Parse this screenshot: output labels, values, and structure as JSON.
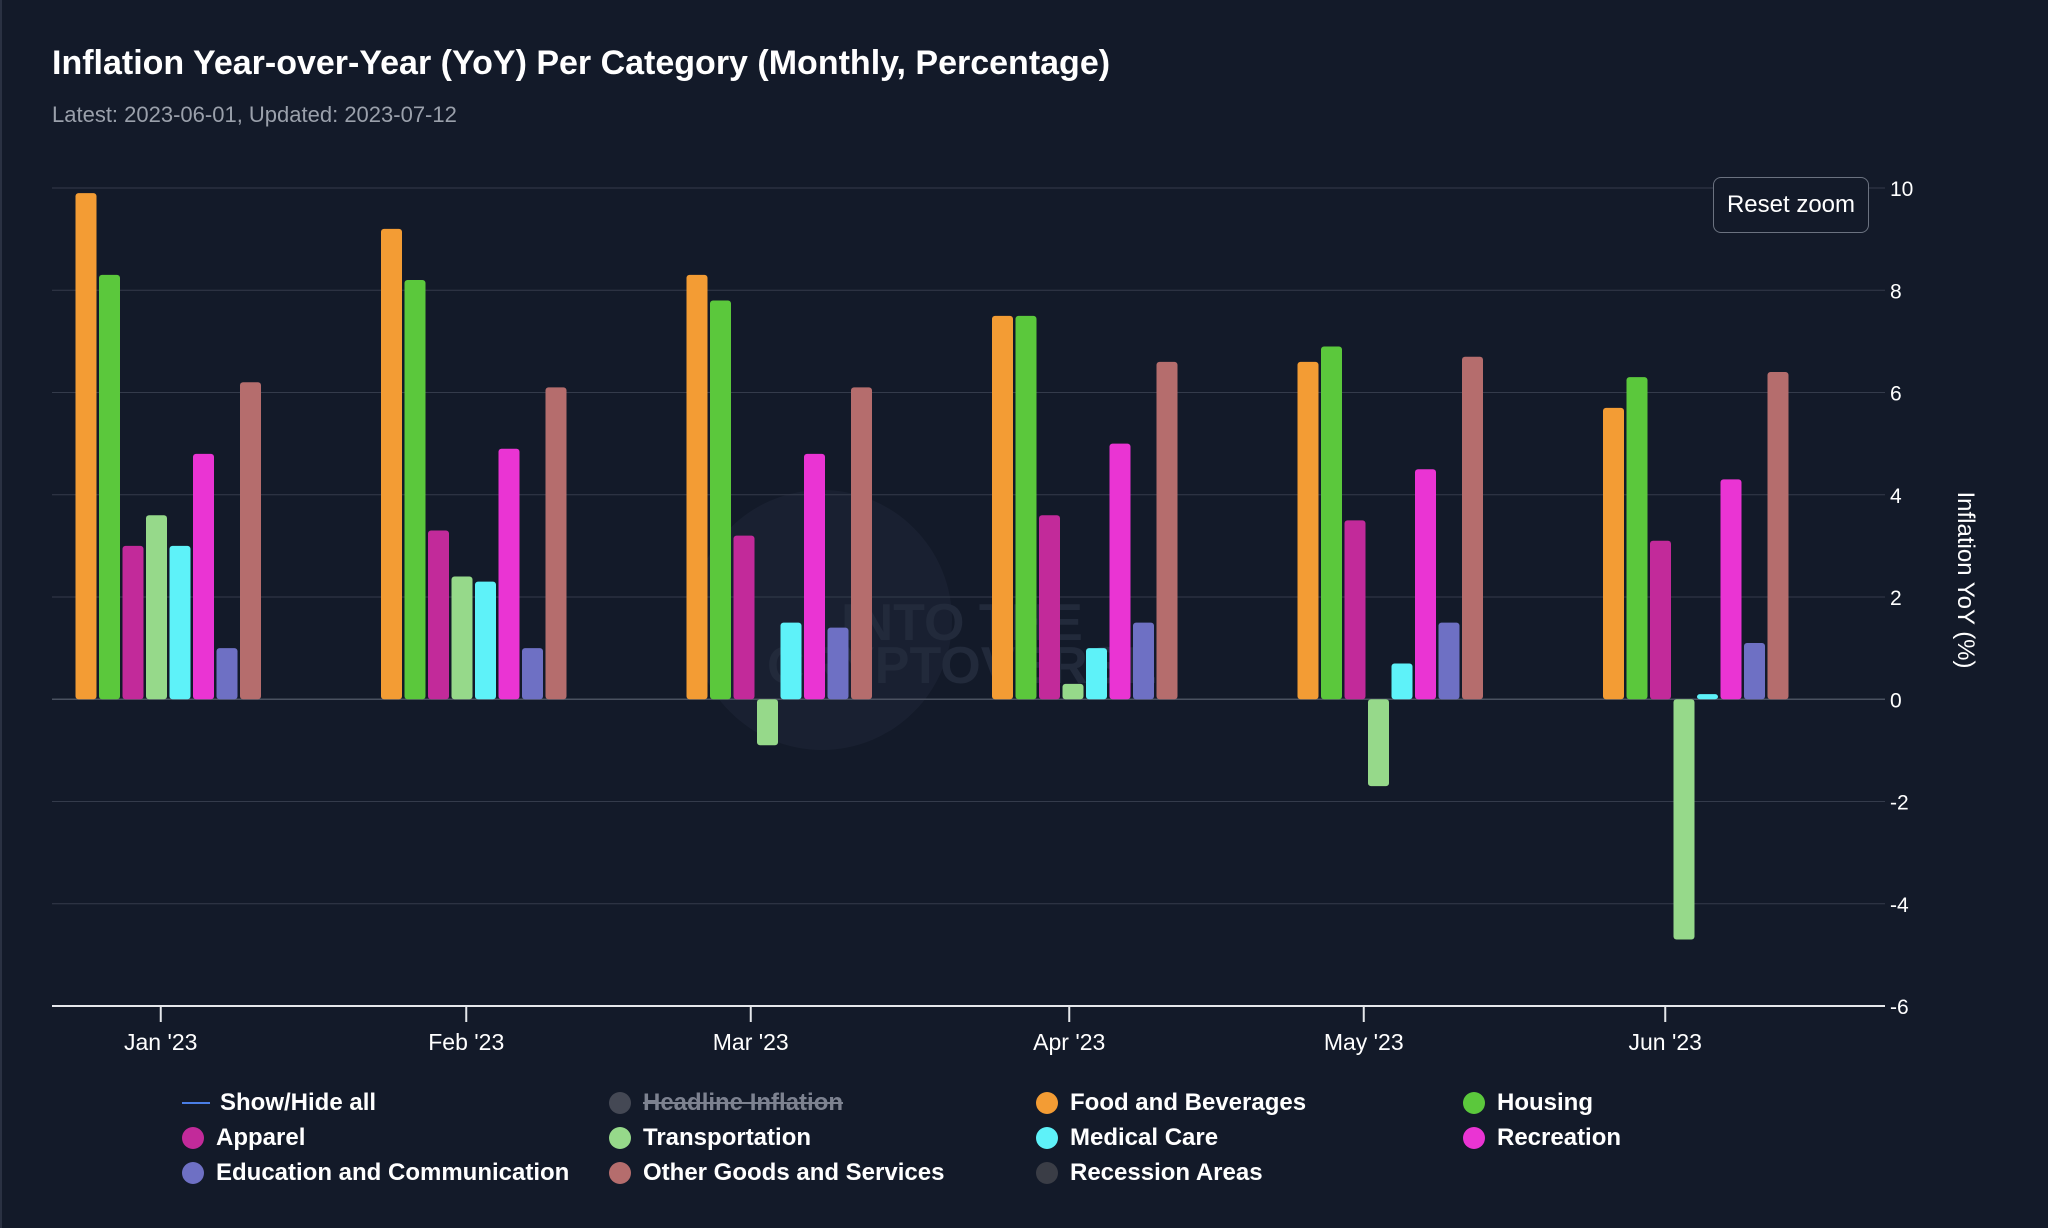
{
  "title": "Inflation Year-over-Year (YoY) Per Category (Monthly, Percentage)",
  "subtitle": "Latest: 2023-06-01, Updated: 2023-07-12",
  "reset_zoom_label": "Reset zoom",
  "chart_data": {
    "type": "bar",
    "title": "Inflation Year-over-Year (YoY) Per Category (Monthly, Percentage)",
    "subtitle": "Latest: 2023-06-01, Updated: 2023-07-12",
    "xlabel": "",
    "ylabel": "Inflation YoY (%)",
    "ylim": [
      -6,
      10
    ],
    "yticks": [
      "10",
      "8",
      "6",
      "4",
      "2",
      "0",
      "-2",
      "-4",
      "-6"
    ],
    "y_axis_side": "right",
    "grid": true,
    "legend_position": "bottom",
    "categories": [
      "Jan '23",
      "Feb '23",
      "Mar '23",
      "Apr '23",
      "May '23",
      "Jun '23"
    ],
    "series": [
      {
        "name": "Food and Beverages",
        "color": "#f39c34",
        "values": [
          9.9,
          9.2,
          8.3,
          7.5,
          6.6,
          5.7
        ]
      },
      {
        "name": "Housing",
        "color": "#5bc83c",
        "values": [
          8.3,
          8.2,
          7.8,
          7.5,
          6.9,
          6.3
        ]
      },
      {
        "name": "Apparel",
        "color": "#c22a9a",
        "values": [
          3.0,
          3.3,
          3.2,
          3.6,
          3.5,
          3.1
        ]
      },
      {
        "name": "Transportation",
        "color": "#96d98a",
        "values": [
          3.6,
          2.4,
          -0.9,
          0.3,
          -1.7,
          -4.7
        ]
      },
      {
        "name": "Medical Care",
        "color": "#5ef2f9",
        "values": [
          3.0,
          2.3,
          1.5,
          1.0,
          0.7,
          0.1
        ]
      },
      {
        "name": "Recreation",
        "color": "#ea34d3",
        "values": [
          4.8,
          4.9,
          4.8,
          5.0,
          4.5,
          4.3
        ]
      },
      {
        "name": "Education and Communication",
        "color": "#6e70c4",
        "values": [
          1.0,
          1.0,
          1.4,
          1.5,
          1.5,
          1.1
        ]
      },
      {
        "name": "Other Goods and Services",
        "color": "#b56d6d",
        "values": [
          6.2,
          6.1,
          6.1,
          6.6,
          6.7,
          6.4
        ]
      }
    ]
  },
  "watermark": {
    "line1": "INTO THE",
    "line2": "CRYPTOVERSE"
  },
  "legend": [
    {
      "label": "Show/Hide all",
      "color": "#4a7ee6",
      "symbol": "line",
      "hidden": false
    },
    {
      "label": "Headline Inflation",
      "color": "#5a5d66",
      "symbol": "circle",
      "hidden": true
    },
    {
      "label": "Food and Beverages",
      "color": "#f39c34",
      "symbol": "circle",
      "hidden": false
    },
    {
      "label": "Housing",
      "color": "#5bc83c",
      "symbol": "circle",
      "hidden": false
    },
    {
      "label": "Apparel",
      "color": "#c22a9a",
      "symbol": "circle",
      "hidden": false
    },
    {
      "label": "Transportation",
      "color": "#96d98a",
      "symbol": "circle",
      "hidden": false
    },
    {
      "label": "Medical Care",
      "color": "#5ef2f9",
      "symbol": "circle",
      "hidden": false
    },
    {
      "label": "Recreation",
      "color": "#ea34d3",
      "symbol": "circle",
      "hidden": false
    },
    {
      "label": "Education and Communication",
      "color": "#6e70c4",
      "symbol": "circle",
      "hidden": false
    },
    {
      "label": "Other Goods and Services",
      "color": "#b56d6d",
      "symbol": "circle",
      "hidden": false
    },
    {
      "label": "Recession Areas",
      "color": "#3a3d46",
      "symbol": "circle",
      "hidden": false
    }
  ]
}
